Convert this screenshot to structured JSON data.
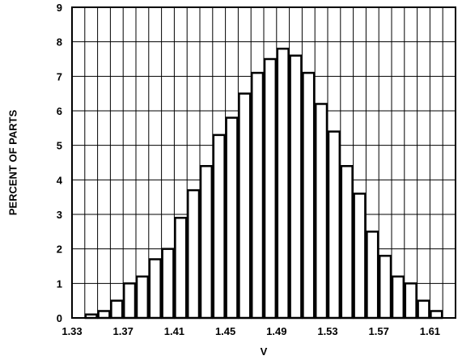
{
  "chart_data": {
    "type": "bar",
    "title": "",
    "xlabel": "V",
    "ylabel": "PERCENT OF PARTS",
    "xlim": [
      1.33,
      1.63
    ],
    "ylim": [
      0,
      9
    ],
    "bin_width": 0.01,
    "x_tick_labels": [
      "1.33",
      "1.37",
      "1.41",
      "1.45",
      "1.49",
      "1.53",
      "1.57",
      "1.61"
    ],
    "y_tick_labels": [
      "0",
      "1",
      "2",
      "3",
      "4",
      "5",
      "6",
      "7",
      "8",
      "9"
    ],
    "grid": true,
    "bins": [
      {
        "x": 1.345,
        "value": 0.1
      },
      {
        "x": 1.355,
        "value": 0.2
      },
      {
        "x": 1.365,
        "value": 0.5
      },
      {
        "x": 1.375,
        "value": 1.0
      },
      {
        "x": 1.385,
        "value": 1.2
      },
      {
        "x": 1.395,
        "value": 1.7
      },
      {
        "x": 1.405,
        "value": 2.0
      },
      {
        "x": 1.415,
        "value": 2.9
      },
      {
        "x": 1.425,
        "value": 3.7
      },
      {
        "x": 1.435,
        "value": 4.4
      },
      {
        "x": 1.445,
        "value": 5.3
      },
      {
        "x": 1.455,
        "value": 5.8
      },
      {
        "x": 1.465,
        "value": 6.5
      },
      {
        "x": 1.475,
        "value": 7.1
      },
      {
        "x": 1.485,
        "value": 7.5
      },
      {
        "x": 1.495,
        "value": 7.8
      },
      {
        "x": 1.505,
        "value": 7.6
      },
      {
        "x": 1.515,
        "value": 7.1
      },
      {
        "x": 1.525,
        "value": 6.2
      },
      {
        "x": 1.535,
        "value": 5.4
      },
      {
        "x": 1.545,
        "value": 4.4
      },
      {
        "x": 1.555,
        "value": 3.6
      },
      {
        "x": 1.565,
        "value": 2.5
      },
      {
        "x": 1.575,
        "value": 1.8
      },
      {
        "x": 1.585,
        "value": 1.2
      },
      {
        "x": 1.595,
        "value": 1.0
      },
      {
        "x": 1.605,
        "value": 0.5
      },
      {
        "x": 1.615,
        "value": 0.2
      }
    ]
  }
}
